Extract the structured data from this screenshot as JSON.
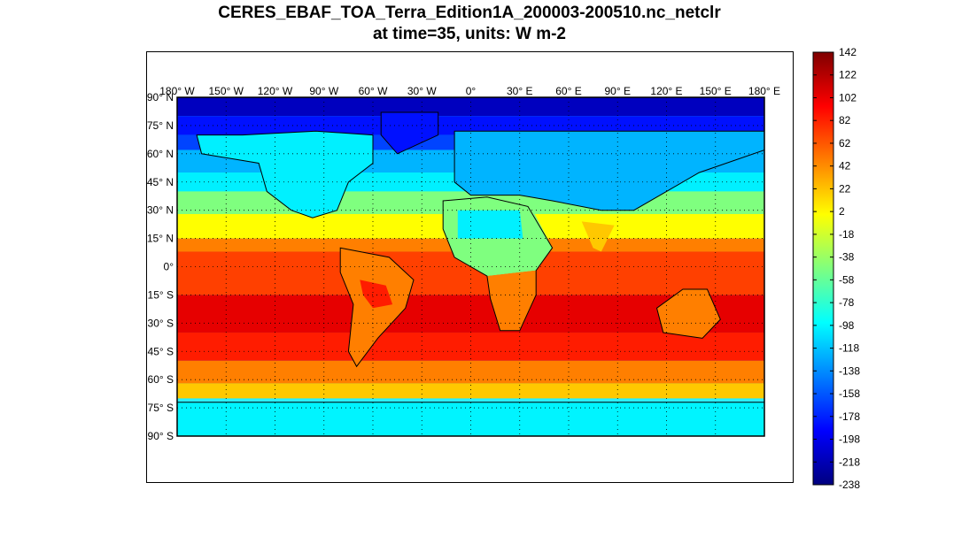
{
  "title": {
    "line1": "CERES_EBAF_TOA_Terra_Edition1A_200003-200510.nc_netclr",
    "line2": "at time=35, units: W m-2"
  },
  "map": {
    "lon_labels": [
      "180 W",
      "150 W",
      "120 W",
      "90 W",
      "60 W",
      "30 W",
      "0",
      "30 E",
      "60 E",
      "90 E",
      "120 E",
      "150 E",
      "180 E"
    ],
    "lat_labels": [
      "90 N",
      "75 N",
      "60 N",
      "45 N",
      "30 N",
      "15 N",
      "0",
      "15 S",
      "30 S",
      "45 S",
      "60 S",
      "75 S",
      "90 S"
    ],
    "degree_symbol": "°",
    "zonal_band_colors": [
      "#0000bf",
      "#0010ff",
      "#0044ff",
      "#00b4ff",
      "#00f0ff",
      "#7fff7f",
      "#ffff00",
      "#ff7f00",
      "#ff4000",
      "#e60000",
      "#ff1c00",
      "#ff7f00",
      "#ffc800",
      "#2af0ff",
      "#00f4ff"
    ]
  },
  "colorbar": {
    "ticks": [
      "142",
      "122",
      "102",
      "82",
      "62",
      "42",
      "22",
      "2",
      "-18",
      "-38",
      "-58",
      "-78",
      "-98",
      "-118",
      "-138",
      "-158",
      "-178",
      "-198",
      "-218",
      "-238"
    ],
    "colormap": "jet",
    "colors": [
      "#00007f",
      "#0000ff",
      "#007fff",
      "#00ffff",
      "#7fff7f",
      "#ffff00",
      "#ff7f00",
      "#ff0000",
      "#7f0000"
    ]
  }
}
